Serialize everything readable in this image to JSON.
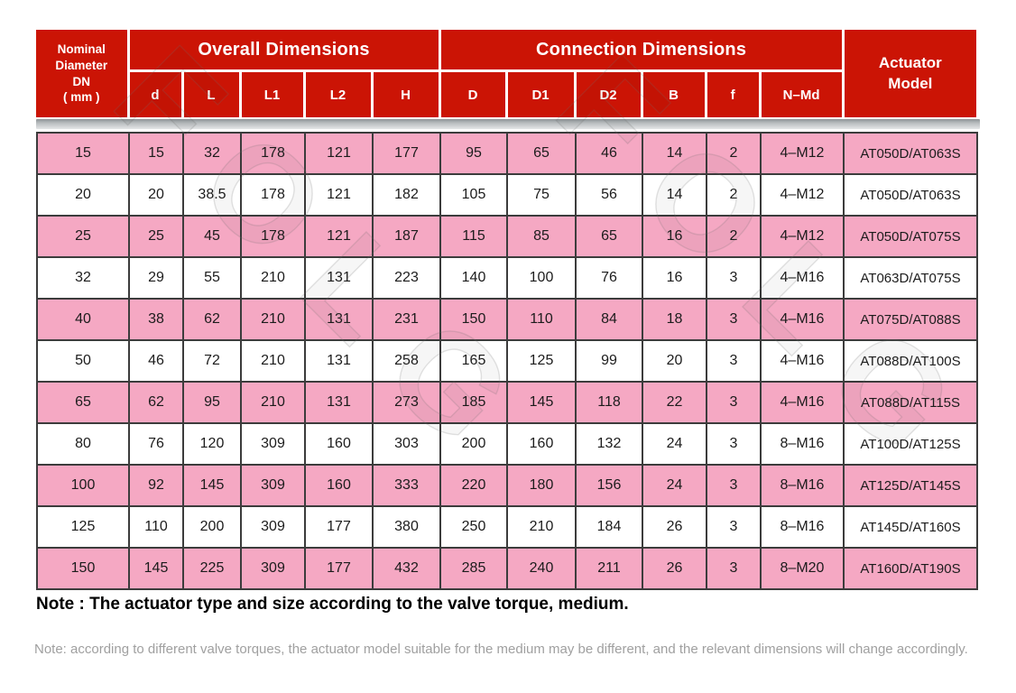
{
  "table": {
    "header": {
      "dn": [
        "Nominal",
        "Diameter",
        "DN",
        "( mm )"
      ],
      "overall": "Overall Dimensions",
      "connection": "Connection Dimensions",
      "actuator": [
        "Actuator",
        "Model"
      ],
      "sub_columns": [
        "d",
        "L",
        "L1",
        "L2",
        "H",
        "D",
        "D1",
        "D2",
        "B",
        "f",
        "N–Md"
      ]
    },
    "rows": [
      [
        "15",
        "15",
        "32",
        "178",
        "121",
        "177",
        "95",
        "65",
        "46",
        "14",
        "2",
        "4–M12",
        "AT050D/AT063S"
      ],
      [
        "20",
        "20",
        "38.5",
        "178",
        "121",
        "182",
        "105",
        "75",
        "56",
        "14",
        "2",
        "4–M12",
        "AT050D/AT063S"
      ],
      [
        "25",
        "25",
        "45",
        "178",
        "121",
        "187",
        "115",
        "85",
        "65",
        "16",
        "2",
        "4–M12",
        "AT050D/AT075S"
      ],
      [
        "32",
        "29",
        "55",
        "210",
        "131",
        "223",
        "140",
        "100",
        "76",
        "16",
        "3",
        "4–M16",
        "AT063D/AT075S"
      ],
      [
        "40",
        "38",
        "62",
        "210",
        "131",
        "231",
        "150",
        "110",
        "84",
        "18",
        "3",
        "4–M16",
        "AT075D/AT088S"
      ],
      [
        "50",
        "46",
        "72",
        "210",
        "131",
        "258",
        "165",
        "125",
        "99",
        "20",
        "3",
        "4–M16",
        "AT088D/AT100S"
      ],
      [
        "65",
        "62",
        "95",
        "210",
        "131",
        "273",
        "185",
        "145",
        "118",
        "22",
        "3",
        "4–M16",
        "AT088D/AT115S"
      ],
      [
        "80",
        "76",
        "120",
        "309",
        "160",
        "303",
        "200",
        "160",
        "132",
        "24",
        "3",
        "8–M16",
        "AT100D/AT125S"
      ],
      [
        "100",
        "92",
        "145",
        "309",
        "160",
        "333",
        "220",
        "180",
        "156",
        "24",
        "3",
        "8–M16",
        "AT125D/AT145S"
      ],
      [
        "125",
        "110",
        "200",
        "309",
        "177",
        "380",
        "250",
        "210",
        "184",
        "26",
        "3",
        "8–M16",
        "AT145D/AT160S"
      ],
      [
        "150",
        "145",
        "225",
        "309",
        "177",
        "432",
        "285",
        "240",
        "211",
        "26",
        "3",
        "8–M20",
        "AT160D/AT190S"
      ]
    ]
  },
  "notes": {
    "primary": "Note : The actuator type and size according to the valve torque, medium.",
    "secondary": "Note: according to different valve torques, the actuator model suitable for the medium may be different, and the relevant dimensions will change accordingly."
  },
  "watermark": {
    "text": "FOLG"
  },
  "colors": {
    "header_red": "#CB1405",
    "row_pink": "#F5A8C3",
    "body_border": "#3C3C3C",
    "note_gray": "#A0A0A0"
  }
}
